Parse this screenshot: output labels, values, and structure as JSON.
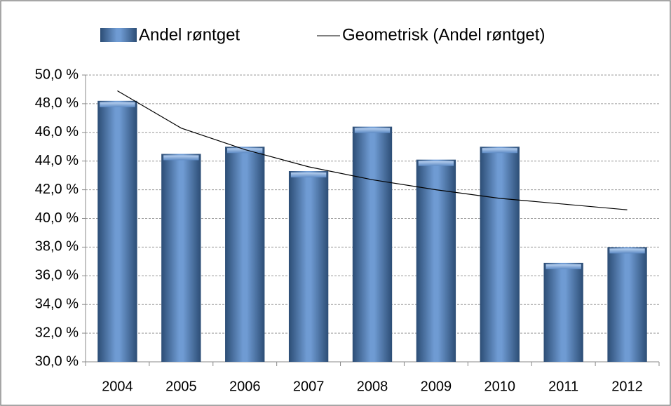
{
  "chart_data": {
    "type": "bar",
    "categories": [
      "2004",
      "2005",
      "2006",
      "2007",
      "2008",
      "2009",
      "2010",
      "2011",
      "2012"
    ],
    "series": [
      {
        "name": "Andel røntget",
        "type": "bar",
        "color": "#4f81bd",
        "values": [
          48.2,
          44.5,
          45.0,
          43.3,
          46.4,
          44.1,
          45.0,
          36.9,
          38.0
        ]
      },
      {
        "name": "Geometrisk (Andel røntget)",
        "type": "line",
        "color": "#000000",
        "values": [
          48.9,
          46.3,
          44.8,
          43.6,
          42.7,
          42.0,
          41.4,
          41.0,
          40.6
        ]
      }
    ],
    "ylim": [
      30,
      50
    ],
    "yticks": [
      {
        "value": 30,
        "label": "30,0 %"
      },
      {
        "value": 32,
        "label": "32,0 %"
      },
      {
        "value": 34,
        "label": "34,0 %"
      },
      {
        "value": 36,
        "label": "36,0 %"
      },
      {
        "value": 38,
        "label": "38,0 %"
      },
      {
        "value": 40,
        "label": "40,0 %"
      },
      {
        "value": 42,
        "label": "42,0 %"
      },
      {
        "value": 44,
        "label": "44,0 %"
      },
      {
        "value": 46,
        "label": "46,0 %"
      },
      {
        "value": 48,
        "label": "48,0 %"
      },
      {
        "value": 50,
        "label": "50,0 %"
      }
    ],
    "grid": true,
    "legend": "top"
  }
}
